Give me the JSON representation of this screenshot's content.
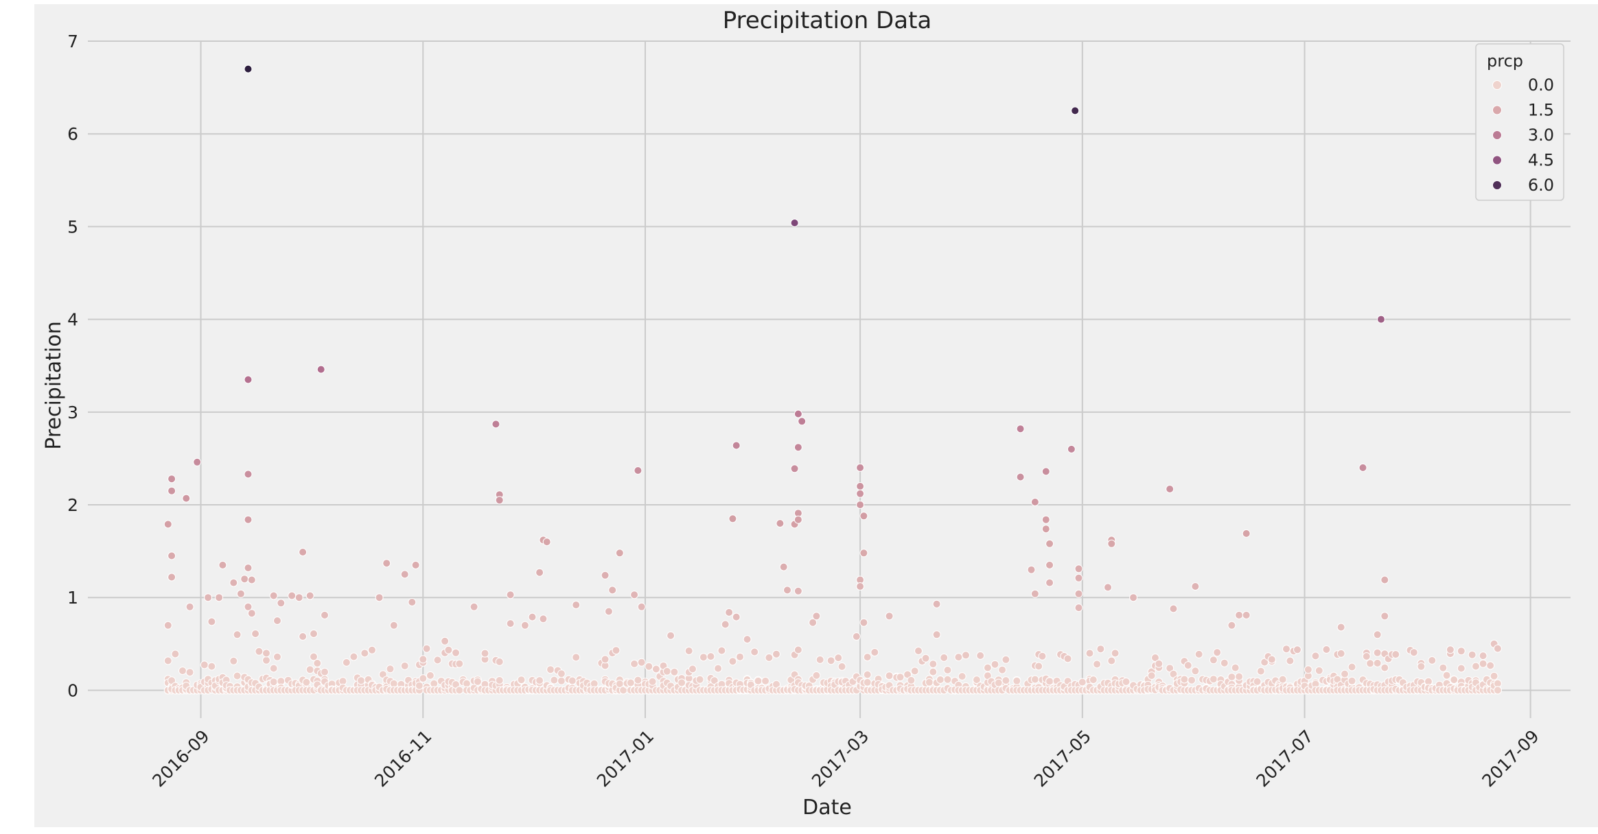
{
  "colors": {
    "background": "#f0f0f0",
    "grid": "#cbcbcb",
    "text": "#222222",
    "palette": [
      "#efd3cd",
      "#d6a3a7",
      "#b4708f",
      "#7f4779",
      "#2d1e3e"
    ]
  },
  "chart_data": {
    "type": "scatter",
    "title": "Precipitation Data",
    "xlabel": "Date",
    "ylabel": "Precipitation",
    "ylim": [
      -0.3,
      7
    ],
    "xlim": [
      "2016-08-01",
      "2017-09-12"
    ],
    "yticks": [
      0,
      1,
      2,
      3,
      4,
      5,
      6,
      7
    ],
    "xticks": [
      "2016-09",
      "2016-11",
      "2017-01",
      "2017-03",
      "2017-05",
      "2017-07",
      "2017-09"
    ],
    "grid": true,
    "legend": {
      "title": "prcp",
      "placement": "top-right",
      "entries": [
        "0.0",
        "1.5",
        "3.0",
        "4.5",
        "6.0"
      ]
    },
    "hue_range": [
      0,
      6.7
    ],
    "points": [
      {
        "x": "2016-08-23",
        "y": 0.7
      },
      {
        "x": "2016-08-23",
        "y": 1.79
      },
      {
        "x": "2016-08-24",
        "y": 2.28
      },
      {
        "x": "2016-08-24",
        "y": 2.15
      },
      {
        "x": "2016-08-24",
        "y": 1.45
      },
      {
        "x": "2016-08-24",
        "y": 1.22
      },
      {
        "x": "2016-08-28",
        "y": 2.07
      },
      {
        "x": "2016-08-29",
        "y": 0.9
      },
      {
        "x": "2016-08-31",
        "y": 2.46
      },
      {
        "x": "2016-09-03",
        "y": 1.0
      },
      {
        "x": "2016-09-04",
        "y": 0.74
      },
      {
        "x": "2016-09-06",
        "y": 1.0
      },
      {
        "x": "2016-09-07",
        "y": 1.35
      },
      {
        "x": "2016-09-10",
        "y": 1.16
      },
      {
        "x": "2016-09-11",
        "y": 0.6
      },
      {
        "x": "2016-09-12",
        "y": 1.04
      },
      {
        "x": "2016-09-13",
        "y": 1.2
      },
      {
        "x": "2016-09-14",
        "y": 6.7
      },
      {
        "x": "2016-09-14",
        "y": 3.35
      },
      {
        "x": "2016-09-14",
        "y": 2.33
      },
      {
        "x": "2016-09-14",
        "y": 1.84
      },
      {
        "x": "2016-09-14",
        "y": 1.32
      },
      {
        "x": "2016-09-14",
        "y": 0.9
      },
      {
        "x": "2016-09-15",
        "y": 0.83
      },
      {
        "x": "2016-09-15",
        "y": 1.19
      },
      {
        "x": "2016-09-16",
        "y": 0.61
      },
      {
        "x": "2016-09-19",
        "y": 0.4
      },
      {
        "x": "2016-09-21",
        "y": 1.02
      },
      {
        "x": "2016-09-22",
        "y": 0.75
      },
      {
        "x": "2016-09-23",
        "y": 0.94
      },
      {
        "x": "2016-09-26",
        "y": 1.02
      },
      {
        "x": "2016-09-28",
        "y": 1.0
      },
      {
        "x": "2016-09-29",
        "y": 0.58
      },
      {
        "x": "2016-09-29",
        "y": 1.49
      },
      {
        "x": "2016-10-01",
        "y": 1.02
      },
      {
        "x": "2016-10-02",
        "y": 0.61
      },
      {
        "x": "2016-10-04",
        "y": 3.46
      },
      {
        "x": "2016-10-05",
        "y": 0.81
      },
      {
        "x": "2016-10-11",
        "y": 0.3
      },
      {
        "x": "2016-10-16",
        "y": 0.4
      },
      {
        "x": "2016-10-20",
        "y": 1.0
      },
      {
        "x": "2016-10-22",
        "y": 1.37
      },
      {
        "x": "2016-10-24",
        "y": 0.7
      },
      {
        "x": "2016-10-27",
        "y": 1.25
      },
      {
        "x": "2016-10-29",
        "y": 0.95
      },
      {
        "x": "2016-10-30",
        "y": 1.35
      },
      {
        "x": "2016-11-07",
        "y": 0.53
      },
      {
        "x": "2016-11-15",
        "y": 0.9
      },
      {
        "x": "2016-11-21",
        "y": 2.87
      },
      {
        "x": "2016-11-22",
        "y": 2.11
      },
      {
        "x": "2016-11-22",
        "y": 2.05
      },
      {
        "x": "2016-11-25",
        "y": 1.03
      },
      {
        "x": "2016-11-25",
        "y": 0.72
      },
      {
        "x": "2016-11-29",
        "y": 0.7
      },
      {
        "x": "2016-12-01",
        "y": 0.79
      },
      {
        "x": "2016-12-03",
        "y": 1.27
      },
      {
        "x": "2016-12-04",
        "y": 1.62
      },
      {
        "x": "2016-12-05",
        "y": 1.6
      },
      {
        "x": "2016-12-04",
        "y": 0.77
      },
      {
        "x": "2016-12-13",
        "y": 0.92
      },
      {
        "x": "2016-12-21",
        "y": 1.24
      },
      {
        "x": "2016-12-22",
        "y": 0.85
      },
      {
        "x": "2016-12-23",
        "y": 1.08
      },
      {
        "x": "2016-12-25",
        "y": 1.48
      },
      {
        "x": "2016-12-29",
        "y": 1.03
      },
      {
        "x": "2016-12-30",
        "y": 2.37
      },
      {
        "x": "2016-12-31",
        "y": 0.9
      },
      {
        "x": "2017-01-08",
        "y": 0.59
      },
      {
        "x": "2017-01-23",
        "y": 0.71
      },
      {
        "x": "2017-01-24",
        "y": 0.84
      },
      {
        "x": "2017-01-25",
        "y": 1.85
      },
      {
        "x": "2017-01-26",
        "y": 0.79
      },
      {
        "x": "2017-01-26",
        "y": 2.64
      },
      {
        "x": "2017-01-29",
        "y": 0.55
      },
      {
        "x": "2017-02-07",
        "y": 1.8
      },
      {
        "x": "2017-02-08",
        "y": 1.33
      },
      {
        "x": "2017-02-09",
        "y": 1.08
      },
      {
        "x": "2017-02-11",
        "y": 5.04
      },
      {
        "x": "2017-02-11",
        "y": 2.39
      },
      {
        "x": "2017-02-11",
        "y": 1.79
      },
      {
        "x": "2017-02-12",
        "y": 2.98
      },
      {
        "x": "2017-02-12",
        "y": 2.62
      },
      {
        "x": "2017-02-12",
        "y": 1.91
      },
      {
        "x": "2017-02-12",
        "y": 1.84
      },
      {
        "x": "2017-02-12",
        "y": 1.07
      },
      {
        "x": "2017-02-13",
        "y": 2.9
      },
      {
        "x": "2017-02-16",
        "y": 0.73
      },
      {
        "x": "2017-02-17",
        "y": 0.8
      },
      {
        "x": "2017-02-28",
        "y": 0.58
      },
      {
        "x": "2017-03-01",
        "y": 2.4
      },
      {
        "x": "2017-03-01",
        "y": 2.2
      },
      {
        "x": "2017-03-01",
        "y": 2.12
      },
      {
        "x": "2017-03-01",
        "y": 2.0
      },
      {
        "x": "2017-03-01",
        "y": 1.19
      },
      {
        "x": "2017-03-01",
        "y": 1.12
      },
      {
        "x": "2017-03-02",
        "y": 1.88
      },
      {
        "x": "2017-03-02",
        "y": 1.48
      },
      {
        "x": "2017-03-02",
        "y": 0.73
      },
      {
        "x": "2017-03-05",
        "y": 0.41
      },
      {
        "x": "2017-03-09",
        "y": 0.8
      },
      {
        "x": "2017-03-22",
        "y": 0.93
      },
      {
        "x": "2017-03-22",
        "y": 0.6
      },
      {
        "x": "2017-04-14",
        "y": 2.82
      },
      {
        "x": "2017-04-14",
        "y": 2.3
      },
      {
        "x": "2017-04-17",
        "y": 1.3
      },
      {
        "x": "2017-04-18",
        "y": 2.03
      },
      {
        "x": "2017-04-18",
        "y": 1.04
      },
      {
        "x": "2017-04-21",
        "y": 2.36
      },
      {
        "x": "2017-04-21",
        "y": 1.84
      },
      {
        "x": "2017-04-21",
        "y": 1.74
      },
      {
        "x": "2017-04-22",
        "y": 1.58
      },
      {
        "x": "2017-04-22",
        "y": 1.35
      },
      {
        "x": "2017-04-22",
        "y": 1.16
      },
      {
        "x": "2017-04-28",
        "y": 2.6
      },
      {
        "x": "2017-04-29",
        "y": 6.25
      },
      {
        "x": "2017-04-30",
        "y": 1.31
      },
      {
        "x": "2017-04-30",
        "y": 1.21
      },
      {
        "x": "2017-04-30",
        "y": 1.04
      },
      {
        "x": "2017-04-30",
        "y": 0.89
      },
      {
        "x": "2017-05-08",
        "y": 1.11
      },
      {
        "x": "2017-05-09",
        "y": 1.62
      },
      {
        "x": "2017-05-09",
        "y": 1.58
      },
      {
        "x": "2017-05-15",
        "y": 1.0
      },
      {
        "x": "2017-05-25",
        "y": 2.17
      },
      {
        "x": "2017-05-26",
        "y": 0.88
      },
      {
        "x": "2017-06-01",
        "y": 1.12
      },
      {
        "x": "2017-06-15",
        "y": 1.69
      },
      {
        "x": "2017-06-13",
        "y": 0.81
      },
      {
        "x": "2017-06-15",
        "y": 0.81
      },
      {
        "x": "2017-06-11",
        "y": 0.7
      },
      {
        "x": "2017-07-11",
        "y": 0.68
      },
      {
        "x": "2017-07-17",
        "y": 2.4
      },
      {
        "x": "2017-07-22",
        "y": 4.0
      },
      {
        "x": "2017-07-23",
        "y": 0.8
      },
      {
        "x": "2017-07-23",
        "y": 1.19
      },
      {
        "x": "2017-07-21",
        "y": 0.6
      },
      {
        "x": "2017-08-22",
        "y": 0.5
      },
      {
        "x": "2017-08-23",
        "y": 0.45
      }
    ]
  }
}
